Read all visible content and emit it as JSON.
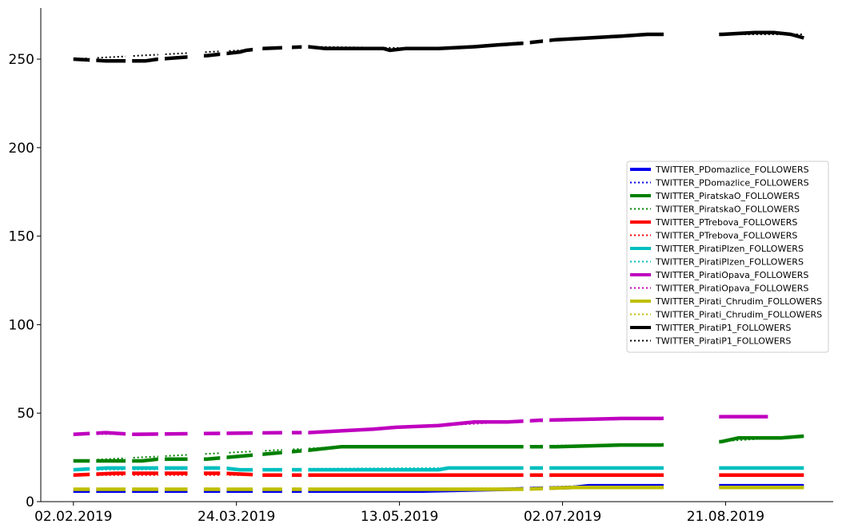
{
  "chart_data": {
    "type": "line",
    "title": "",
    "xlabel": "",
    "ylabel": "",
    "x_ticks": [
      "02.02.2019",
      "24.03.2019",
      "13.05.2019",
      "02.07.2019",
      "21.08.2019"
    ],
    "y_ticks": [
      "0",
      "50",
      "100",
      "150",
      "200",
      "250"
    ],
    "xlim": [
      "2019-01-23",
      "2019-09-23"
    ],
    "ylim": [
      0,
      278
    ],
    "grid": false,
    "legend_position": "center-right",
    "series": [
      {
        "name": "TWITTER_PDomazlice_FOLLOWERS",
        "color": "#0000ee",
        "style": "solid",
        "points": [
          [
            "2019-02-02",
            6
          ],
          [
            "2019-03-02",
            6
          ],
          [
            "2019-04-08",
            6
          ],
          [
            "2019-05-20",
            6
          ],
          [
            "2019-06-15",
            7
          ],
          [
            "2019-07-05",
            8
          ],
          [
            "2019-07-10",
            9
          ],
          [
            "2019-08-01",
            9
          ],
          [
            "2019-08-20",
            9
          ],
          [
            "2019-09-14",
            9
          ]
        ]
      },
      {
        "name": "TWITTER_PDomazlice_FOLLOWERS",
        "color": "#0000ee",
        "style": "dotted",
        "points": [
          [
            "2019-02-02",
            6
          ],
          [
            "2019-05-20",
            6
          ],
          [
            "2019-07-10",
            9
          ],
          [
            "2019-09-14",
            9
          ]
        ]
      },
      {
        "name": "TWITTER_PiratskaO_FOLLOWERS",
        "color": "#008000",
        "style": "solid",
        "points": [
          [
            "2019-02-02",
            23
          ],
          [
            "2019-02-23",
            23
          ],
          [
            "2019-02-28",
            24
          ],
          [
            "2019-03-15",
            24
          ],
          [
            "2019-04-15",
            29
          ],
          [
            "2019-04-25",
            31
          ],
          [
            "2019-05-25",
            31
          ],
          [
            "2019-06-30",
            31
          ],
          [
            "2019-07-20",
            32
          ],
          [
            "2019-08-01",
            32
          ],
          [
            "2019-08-20",
            34
          ],
          [
            "2019-08-25",
            36
          ],
          [
            "2019-09-07",
            36
          ],
          [
            "2019-09-14",
            37
          ]
        ]
      },
      {
        "name": "TWITTER_PiratskaO_FOLLOWERS",
        "color": "#008000",
        "style": "dotted",
        "points": [
          [
            "2019-02-02",
            23
          ],
          [
            "2019-04-25",
            31
          ],
          [
            "2019-08-01",
            32
          ],
          [
            "2019-09-14",
            37
          ]
        ]
      },
      {
        "name": "TWITTER_PTrebova_FOLLOWERS",
        "color": "#ff0000",
        "style": "solid",
        "points": [
          [
            "2019-02-02",
            15
          ],
          [
            "2019-02-15",
            16
          ],
          [
            "2019-03-20",
            16
          ],
          [
            "2019-04-01",
            15
          ],
          [
            "2019-04-10",
            15
          ],
          [
            "2019-04-15",
            15
          ],
          [
            "2019-06-15",
            15
          ],
          [
            "2019-08-01",
            15
          ],
          [
            "2019-08-20",
            15
          ],
          [
            "2019-09-14",
            15
          ]
        ]
      },
      {
        "name": "TWITTER_PTrebova_FOLLOWERS",
        "color": "#ff0000",
        "style": "dotted",
        "points": [
          [
            "2019-02-02",
            15
          ],
          [
            "2019-09-14",
            15
          ]
        ]
      },
      {
        "name": "TWITTER_PiratiPlzen_FOLLOWERS",
        "color": "#00bfbf",
        "style": "solid",
        "points": [
          [
            "2019-02-02",
            18
          ],
          [
            "2019-02-12",
            19
          ],
          [
            "2019-03-20",
            19
          ],
          [
            "2019-03-25",
            18
          ],
          [
            "2019-04-15",
            18
          ],
          [
            "2019-05-25",
            18
          ],
          [
            "2019-05-28",
            19
          ],
          [
            "2019-08-01",
            19
          ],
          [
            "2019-08-20",
            19
          ],
          [
            "2019-09-14",
            19
          ]
        ]
      },
      {
        "name": "TWITTER_PiratiPlzen_FOLLOWERS",
        "color": "#00bfbf",
        "style": "dotted",
        "points": [
          [
            "2019-02-02",
            18
          ],
          [
            "2019-05-28",
            19
          ],
          [
            "2019-09-14",
            19
          ]
        ]
      },
      {
        "name": "TWITTER_PiratiOpava_FOLLOWERS",
        "color": "#bf00bf",
        "style": "solid",
        "points": [
          [
            "2019-02-02",
            38
          ],
          [
            "2019-02-12",
            39
          ],
          [
            "2019-02-20",
            38
          ],
          [
            "2019-04-08",
            39
          ],
          [
            "2019-04-15",
            39
          ],
          [
            "2019-04-25",
            40
          ],
          [
            "2019-05-05",
            41
          ],
          [
            "2019-05-12",
            42
          ],
          [
            "2019-05-25",
            43
          ],
          [
            "2019-06-05",
            45
          ],
          [
            "2019-06-15",
            45
          ],
          [
            "2019-06-25",
            46
          ],
          [
            "2019-07-20",
            47
          ],
          [
            "2019-08-01",
            47
          ],
          [
            "2019-08-20",
            48
          ],
          [
            "2019-09-03",
            48
          ]
        ]
      },
      {
        "name": "TWITTER_PiratiOpava_FOLLOWERS",
        "color": "#bf00bf",
        "style": "dotted",
        "points": [
          [
            "2019-02-02",
            38
          ],
          [
            "2019-04-15",
            39
          ],
          [
            "2019-06-15",
            45
          ],
          [
            "2019-08-01",
            47
          ],
          [
            "2019-09-03",
            48
          ]
        ]
      },
      {
        "name": "TWITTER_Pirati_Chrudim_FOLLOWERS",
        "color": "#bfbf00",
        "style": "solid",
        "points": [
          [
            "2019-02-02",
            7
          ],
          [
            "2019-05-20",
            7
          ],
          [
            "2019-06-20",
            7
          ],
          [
            "2019-07-05",
            8
          ],
          [
            "2019-08-01",
            8
          ],
          [
            "2019-08-20",
            8
          ],
          [
            "2019-09-14",
            8
          ]
        ]
      },
      {
        "name": "TWITTER_Pirati_Chrudim_FOLLOWERS",
        "color": "#bfbf00",
        "style": "dotted",
        "points": [
          [
            "2019-02-02",
            7
          ],
          [
            "2019-09-14",
            8
          ]
        ]
      },
      {
        "name": "TWITTER_PiratiP1_FOLLOWERS",
        "color": "#000000",
        "style": "solid",
        "points": [
          [
            "2019-02-02",
            250
          ],
          [
            "2019-02-12",
            249
          ],
          [
            "2019-02-24",
            249
          ],
          [
            "2019-02-28",
            250
          ],
          [
            "2019-03-15",
            252
          ],
          [
            "2019-03-25",
            254
          ],
          [
            "2019-03-27",
            255
          ],
          [
            "2019-04-01",
            256
          ],
          [
            "2019-04-15",
            257
          ],
          [
            "2019-04-20",
            256
          ],
          [
            "2019-05-08",
            256
          ],
          [
            "2019-05-10",
            255
          ],
          [
            "2019-05-15",
            256
          ],
          [
            "2019-05-25",
            256
          ],
          [
            "2019-06-05",
            257
          ],
          [
            "2019-06-12",
            258
          ],
          [
            "2019-06-20",
            259
          ],
          [
            "2019-06-30",
            261
          ],
          [
            "2019-07-10",
            262
          ],
          [
            "2019-07-20",
            263
          ],
          [
            "2019-07-28",
            264
          ],
          [
            "2019-08-01",
            264
          ],
          [
            "2019-08-20",
            264
          ],
          [
            "2019-08-30",
            265
          ],
          [
            "2019-09-05",
            265
          ],
          [
            "2019-09-10",
            264
          ],
          [
            "2019-09-14",
            262
          ]
        ]
      },
      {
        "name": "TWITTER_PiratiP1_FOLLOWERS",
        "color": "#000000",
        "style": "dotted",
        "points": [
          [
            "2019-02-02",
            250
          ],
          [
            "2019-04-15",
            257
          ],
          [
            "2019-05-25",
            256
          ],
          [
            "2019-06-30",
            261
          ],
          [
            "2019-08-01",
            264
          ],
          [
            "2019-09-14",
            264
          ]
        ]
      }
    ],
    "gaps": [
      [
        "2019-02-07",
        "2019-02-09"
      ],
      [
        "2019-02-18",
        "2019-02-20"
      ],
      [
        "2019-02-28",
        "2019-03-02"
      ],
      [
        "2019-03-09",
        "2019-03-14"
      ],
      [
        "2019-03-19",
        "2019-03-21"
      ],
      [
        "2019-03-29",
        "2019-04-01"
      ],
      [
        "2019-04-07",
        "2019-04-10"
      ],
      [
        "2019-04-13",
        "2019-04-15"
      ],
      [
        "2019-06-20",
        "2019-06-22"
      ],
      [
        "2019-06-26",
        "2019-06-28"
      ],
      [
        "2019-08-02",
        "2019-08-19"
      ]
    ]
  }
}
